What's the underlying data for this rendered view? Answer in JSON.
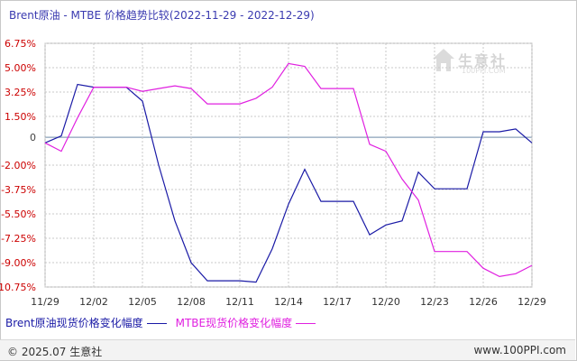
{
  "title": "Brent原油 - MTBE 价格趋势比较(2022-11-29 - 2022-12-29)",
  "watermark": {
    "brand": "生意社",
    "url": "100PPI.COM"
  },
  "footer": {
    "copyright": "© 2025.07 生意社",
    "site": "www.100PPI.com"
  },
  "colors": {
    "series1": "#1a1aa6",
    "series2": "#e020e0",
    "axis_label": "#cc0000",
    "grid": "#c8c8c8",
    "zero_line": "#8aa0b8",
    "title": "#3a3ab0"
  },
  "chart_data": {
    "type": "line",
    "title": "Brent原油 - MTBE 价格趋势比较(2022-11-29 - 2022-12-29)",
    "xlabel": "",
    "ylabel": "",
    "grid": true,
    "legend_position": "bottom",
    "x_ticks": [
      "11/29",
      "12/02",
      "12/05",
      "12/08",
      "12/11",
      "12/14",
      "12/17",
      "12/20",
      "12/23",
      "12/26",
      "12/29"
    ],
    "y_ticks": [
      "6.75%",
      "5.00%",
      "3.25%",
      "1.50%",
      "0",
      "-2.00%",
      "-3.75%",
      "-5.50%",
      "-7.25%",
      "-9.00%",
      "-10.75%"
    ],
    "y_tick_values": [
      6.75,
      5.0,
      3.25,
      1.5,
      0,
      -2.0,
      -3.75,
      -5.5,
      -7.25,
      -9.0,
      -10.75
    ],
    "ylim": [
      -10.75,
      6.75
    ],
    "xlim": [
      "11/29",
      "12/29"
    ],
    "series": [
      {
        "name": "Brent原油现货价格变化幅度",
        "color": "#1a1aa6",
        "x": [
          "11/29",
          "11/30",
          "12/01",
          "12/02",
          "12/03",
          "12/04",
          "12/05",
          "12/06",
          "12/07",
          "12/08",
          "12/09",
          "12/10",
          "12/11",
          "12/12",
          "12/13",
          "12/14",
          "12/15",
          "12/16",
          "12/17",
          "12/18",
          "12/19",
          "12/20",
          "12/21",
          "12/22",
          "12/23",
          "12/24",
          "12/25",
          "12/26",
          "12/27",
          "12/28",
          "12/29"
        ],
        "y": [
          -0.4,
          0.1,
          3.8,
          3.6,
          3.6,
          3.6,
          2.6,
          -2.0,
          -6.0,
          -9.0,
          -10.3,
          -10.3,
          -10.3,
          -10.4,
          -8.0,
          -4.8,
          -2.3,
          -4.6,
          -4.6,
          -4.6,
          -7.0,
          -6.3,
          -6.0,
          -2.5,
          -3.7,
          -3.7,
          -3.7,
          0.4,
          0.4,
          0.6,
          -0.4
        ]
      },
      {
        "name": "MTBE现货价格变化幅度",
        "color": "#e020e0",
        "x": [
          "11/29",
          "11/30",
          "12/01",
          "12/02",
          "12/03",
          "12/04",
          "12/05",
          "12/06",
          "12/07",
          "12/08",
          "12/09",
          "12/10",
          "12/11",
          "12/12",
          "12/13",
          "12/14",
          "12/15",
          "12/16",
          "12/17",
          "12/18",
          "12/19",
          "12/20",
          "12/21",
          "12/22",
          "12/23",
          "12/24",
          "12/25",
          "12/26",
          "12/27",
          "12/28",
          "12/29"
        ],
        "y": [
          -0.4,
          -1.0,
          1.4,
          3.6,
          3.6,
          3.6,
          3.3,
          3.5,
          3.7,
          3.5,
          2.4,
          2.4,
          2.4,
          2.8,
          3.6,
          5.3,
          5.1,
          3.5,
          3.5,
          3.5,
          -0.5,
          -1.0,
          -3.0,
          -4.5,
          -8.2,
          -8.2,
          -8.2,
          -9.4,
          -10.0,
          -9.8,
          -9.2
        ]
      }
    ]
  }
}
